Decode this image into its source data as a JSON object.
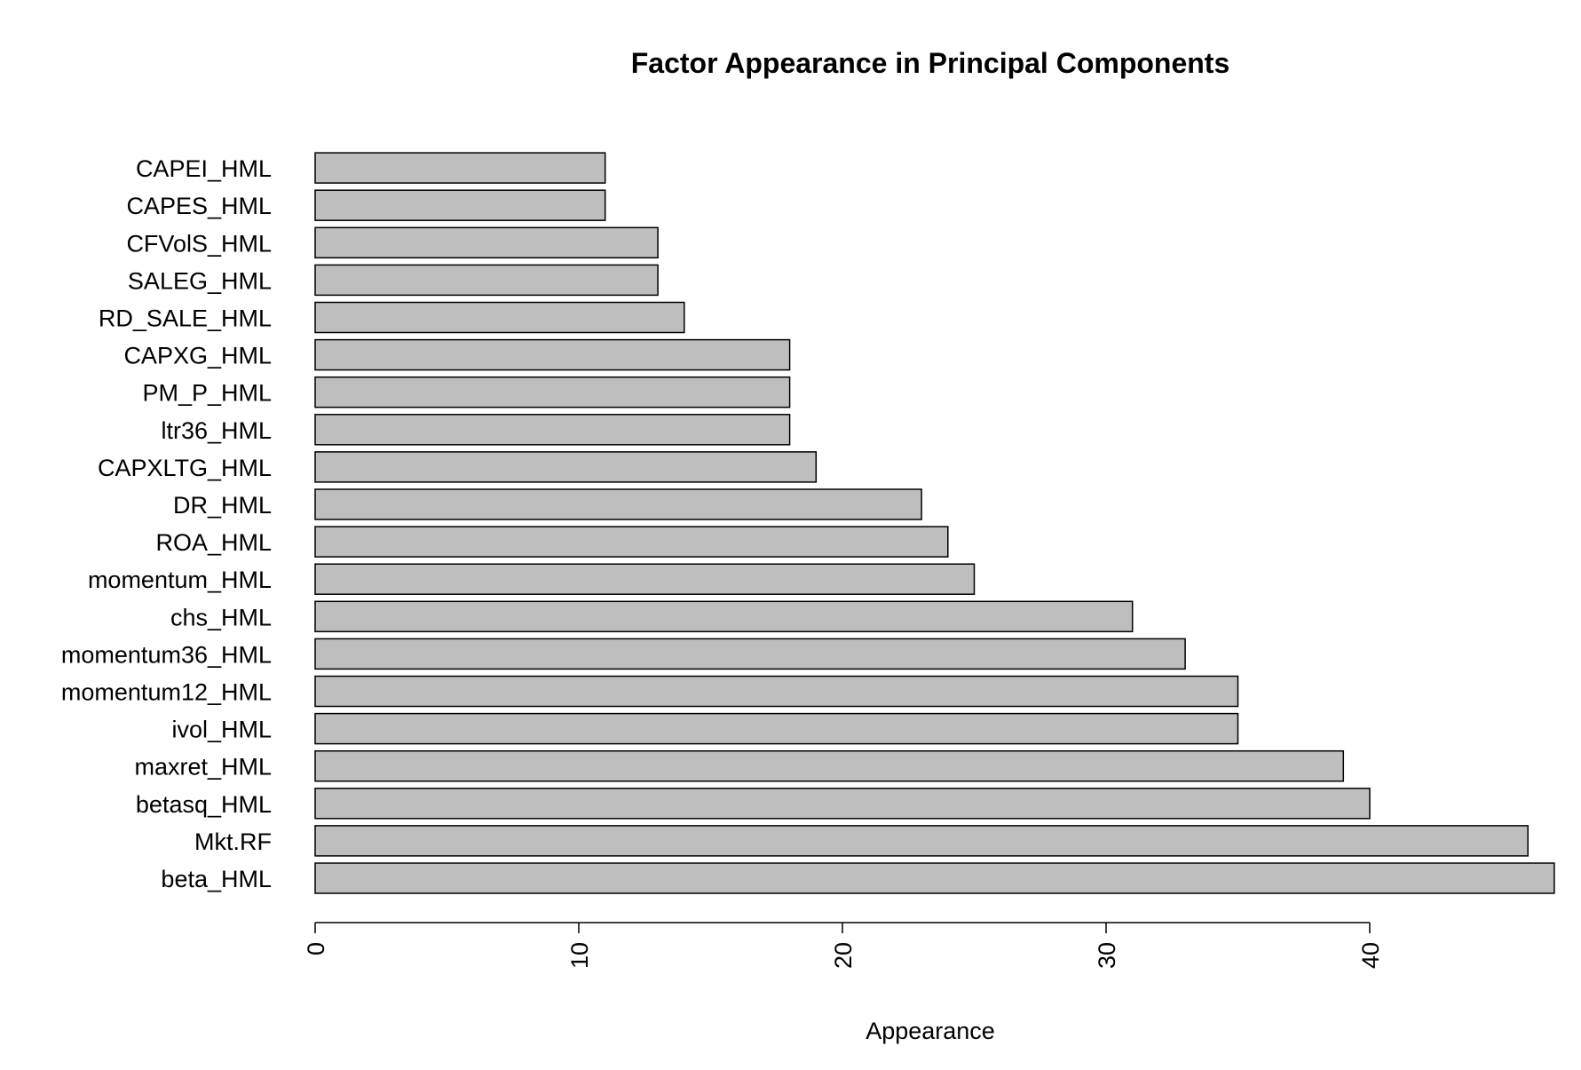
{
  "chart_data": {
    "type": "bar",
    "orientation": "horizontal",
    "title": "Factor Appearance in Principal Components",
    "xlabel": "Appearance",
    "ylabel": "",
    "categories": [
      "beta_HML",
      "Mkt.RF",
      "betasq_HML",
      "maxret_HML",
      "ivol_HML",
      "momentum12_HML",
      "momentum36_HML",
      "chs_HML",
      "momentum_HML",
      "ROA_HML",
      "DR_HML",
      "CAPXLTG_HML",
      "ltr36_HML",
      "PM_P_HML",
      "CAPXG_HML",
      "RD_SALE_HML",
      "SALEG_HML",
      "CFVolS_HML",
      "CAPES_HML",
      "CAPEI_HML"
    ],
    "values": [
      47,
      46,
      40,
      39,
      35,
      35,
      33,
      31,
      25,
      24,
      23,
      19,
      18,
      18,
      18,
      14,
      13,
      13,
      11,
      11
    ],
    "xticks": [
      0,
      10,
      20,
      30,
      40
    ],
    "xtick_labels": [
      "0",
      "10",
      "20",
      "30",
      "40"
    ],
    "xlim": [
      0,
      47
    ],
    "grid": false,
    "legend": "none",
    "bar_color": "#bebebe",
    "bar_border_color": "#000000"
  }
}
